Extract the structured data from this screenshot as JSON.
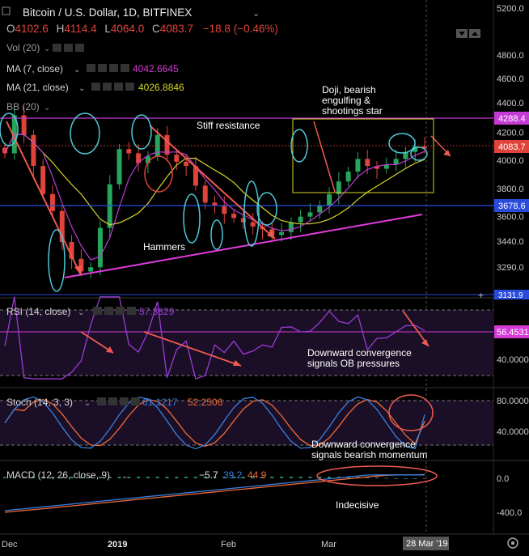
{
  "header": {
    "symbol_title": "Bitcoin / U.S. Dollar, 1D, BITFINEX",
    "open_label": "O",
    "open_value": "4102.6",
    "high_label": "H",
    "high_value": "4114.4",
    "low_label": "L",
    "low_value": "4064.0",
    "close_label": "C",
    "close_value": "4083.7",
    "change": "−18.8 (−0.46%)"
  },
  "indicators": {
    "vol": "Vol (20)",
    "ma7": "MA (7, close)",
    "ma7_value": "4042.6645",
    "ma21": "MA (21, close)",
    "ma21_value": "4026.8846",
    "bb": "BB (20)",
    "rsi": "RSI (14, close)",
    "rsi_value": "57.3829",
    "stoch": "Stoch (14, 3, 3)",
    "stoch_k": "61.1217",
    "stoch_d": "52.2506",
    "macd": "MACD (12, 26, close, 9)",
    "macd_hist": "−5.7",
    "macd_line": "39.2",
    "macd_signal": "44.9"
  },
  "annotations": {
    "stiff_resistance": "Stiff resistance",
    "doji_1": "Doji, bearish",
    "doji_2": "engulfing &",
    "doji_3": "shootings star",
    "hammers": "Hammers",
    "rsi_note_1": "Downward convergence",
    "rsi_note_2": "signals OB pressures",
    "stoch_note_1": "Downward convergence",
    "stoch_note_2": "signals bearish momentum",
    "macd_note": "Indecisive"
  },
  "price_axis": {
    "ticks": [
      "5200.0",
      "4800.0",
      "4600.0",
      "4400.0",
      "4200.0",
      "4000.0",
      "3800.0",
      "3600.0",
      "3440.0",
      "3290.0"
    ],
    "tag_upper": "4288.4",
    "tag_current": "4083.7",
    "tag_lower": "3678.6",
    "tag_bottom": "3131.9"
  },
  "rsi_axis": {
    "tag": "56.4531",
    "tick": "40.0000"
  },
  "stoch_axis": {
    "tick_high": "80.0000",
    "tick_low": "40.0000"
  },
  "macd_axis": {
    "tick_zero": "0.0",
    "tick_low": "-400.0"
  },
  "time_axis": {
    "labels": [
      "Dec",
      "2019",
      "Feb",
      "Mar"
    ],
    "cursor_date": "28 Mar '19"
  },
  "colors": {
    "background": "#000000",
    "up_candle": "#26a65b",
    "down_candle": "#e0433a",
    "ma7": "#c03bd6",
    "ma21": "#d6d62a",
    "resistance": "#c43bd6",
    "trend": "#f05a50",
    "annotation_circle": "#4fc8d8",
    "box": "#d6d62a",
    "rsi_line": "#9c3bd6",
    "stoch_k": "#3a7fe0",
    "stoch_d": "#ef6a3a",
    "macd_line": "#3a7fe0",
    "macd_signal": "#ef6a3a",
    "axis_tag_blue": "#2a4cdc"
  },
  "chart_data": {
    "type": "candlestick",
    "title": "Bitcoin / U.S. Dollar, 1D, BITFINEX",
    "x": [
      "Dec",
      "2019",
      "Feb",
      "Mar",
      "28 Mar '19"
    ],
    "ylim": [
      3131.9,
      5200.0
    ],
    "close_sample": [
      4050,
      4320,
      4180,
      3960,
      3760,
      3640,
      3420,
      3300,
      3210,
      3240,
      3520,
      3830,
      4080,
      4050,
      3980,
      4030,
      4180,
      4040,
      3990,
      3960,
      3820,
      3700,
      3680,
      3620,
      3590,
      3560,
      3530,
      3510,
      3470,
      3490,
      3560,
      3600,
      3630,
      3680,
      3760,
      3850,
      3920,
      4010,
      3960,
      3940,
      3970,
      4010,
      4060,
      4100,
      4083.7
    ],
    "ma7_value": 4042.6645,
    "ma21_value": 4026.8846,
    "resistance_level": 4288.4,
    "support_level": 3678.6,
    "rsi": {
      "current": 57.3829,
      "level": 56.4531
    },
    "stoch": {
      "k": 61.1217,
      "d": 52.2506
    },
    "macd": {
      "histogram": -5.7,
      "macd": 39.2,
      "signal": 44.9
    }
  }
}
